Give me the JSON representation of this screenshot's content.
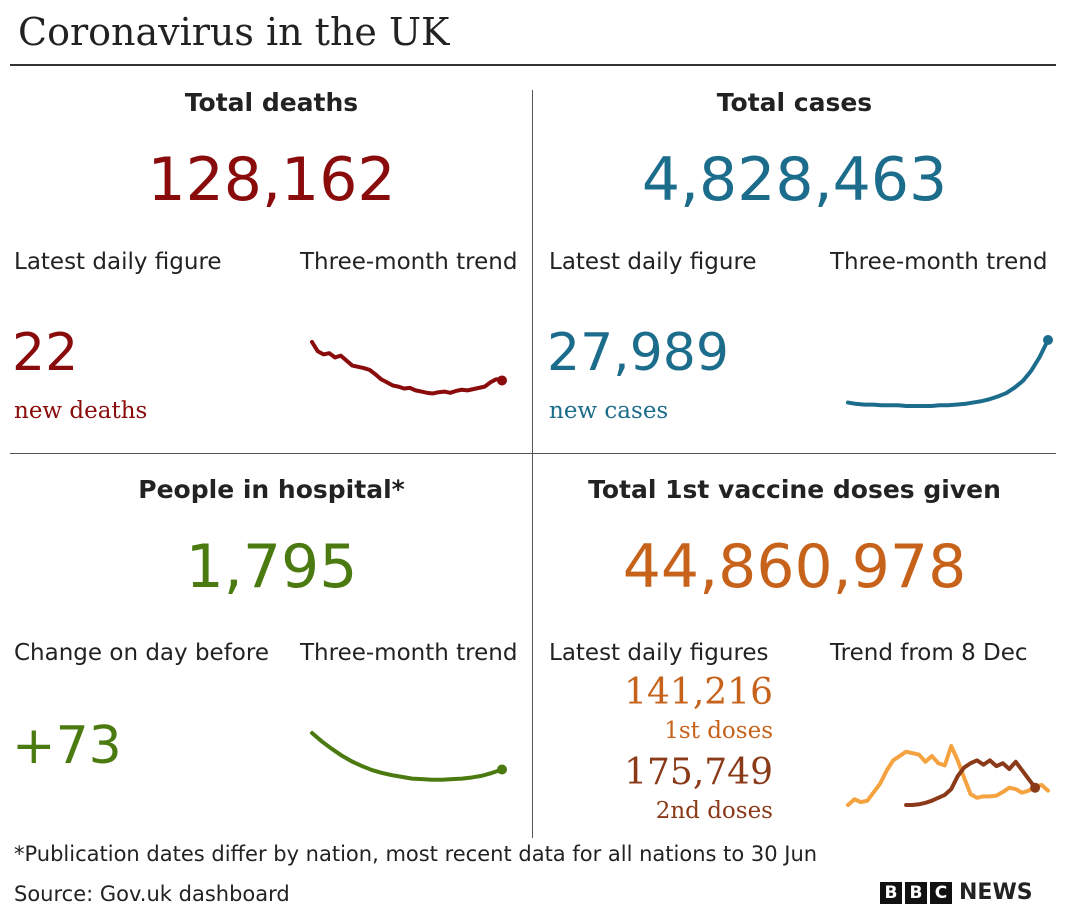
{
  "title": "Coronavirus in the UK",
  "colors": {
    "deaths": "#8a0b0b",
    "cases": "#1c6c8c",
    "hospital": "#4b7a10",
    "vaccine": "#c7621b",
    "first_dose_line": "#f5a340",
    "second_dose_line": "#8b3a19",
    "second_dose_text": "#8b3a19"
  },
  "deaths": {
    "title": "Total deaths",
    "total": "128,162",
    "daily_label": "Latest daily figure",
    "trend_label": "Three-month trend",
    "daily_value": "22",
    "daily_unit": "new deaths"
  },
  "cases": {
    "title": "Total cases",
    "total": "4,828,463",
    "daily_label": "Latest daily figure",
    "trend_label": "Three-month trend",
    "daily_value": "27,989",
    "daily_unit": "new cases"
  },
  "hospital": {
    "title": "People in hospital*",
    "total": "1,795",
    "daily_label": "Change on day before",
    "trend_label": "Three-month trend",
    "daily_value": "+73"
  },
  "vaccine": {
    "title": "Total 1st vaccine doses given",
    "total": "44,860,978",
    "daily_label": "Latest daily figures",
    "trend_label": "Trend from 8 Dec",
    "first_value": "141,216",
    "first_unit": "1st doses",
    "second_value": "175,749",
    "second_unit": "2nd doses"
  },
  "footnote": "*Publication dates differ by nation, most recent data for all nations to 30 Jun",
  "source": "Source: Gov.uk dashboard",
  "logo": {
    "letters": [
      "B",
      "B",
      "C"
    ],
    "word": "NEWS"
  },
  "chart_data": [
    {
      "type": "line",
      "name": "deaths-trend",
      "values": [
        100,
        85,
        80,
        82,
        75,
        78,
        70,
        62,
        60,
        58,
        55,
        48,
        40,
        35,
        30,
        28,
        25,
        26,
        22,
        20,
        18,
        17,
        19,
        20,
        18,
        21,
        23,
        22,
        24,
        26,
        28,
        35,
        40,
        38
      ]
    },
    {
      "type": "line",
      "name": "cases-trend",
      "values": [
        8,
        6,
        5,
        5,
        4,
        4,
        4,
        3,
        3,
        3,
        3,
        4,
        4,
        5,
        6,
        8,
        10,
        13,
        17,
        22,
        30,
        40,
        55,
        75,
        100
      ]
    },
    {
      "type": "line",
      "name": "hospital-trend",
      "values": [
        100,
        85,
        72,
        60,
        50,
        42,
        35,
        30,
        26,
        23,
        20,
        19,
        18,
        18,
        19,
        20,
        22,
        25,
        30,
        36
      ]
    },
    {
      "type": "line",
      "name": "vaccine-trend",
      "series": [
        {
          "values": [
            0,
            8,
            4,
            6,
            18,
            30,
            48,
            62,
            68,
            74,
            72,
            70,
            60,
            68,
            58,
            55,
            82,
            62,
            38,
            15,
            10,
            12,
            12,
            13,
            18,
            24,
            22,
            17,
            20,
            25,
            28,
            20
          ]
        },
        {
          "values": [
            null,
            null,
            null,
            null,
            null,
            null,
            null,
            null,
            null,
            0,
            0,
            1,
            3,
            6,
            10,
            14,
            22,
            40,
            52,
            58,
            62,
            56,
            62,
            54,
            58,
            50,
            60,
            48,
            36,
            24
          ]
        }
      ]
    }
  ]
}
